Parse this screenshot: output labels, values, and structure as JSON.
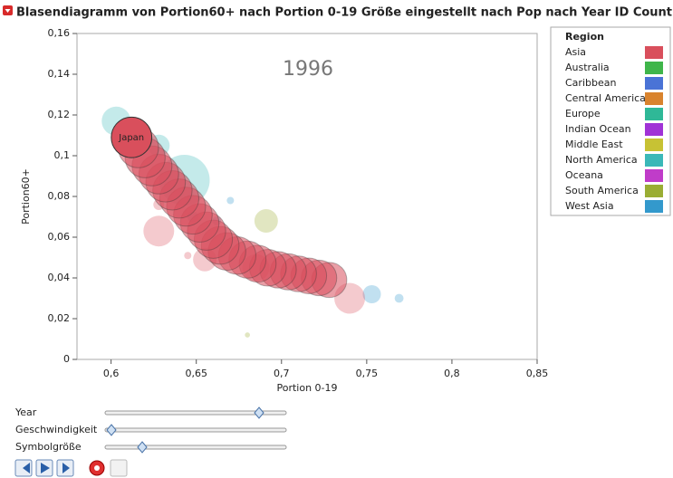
{
  "window_title": "Blasendiagramm von Portion60+ nach Portion 0-19 Größe eingestellt nach Pop nach Year ID Country",
  "chart_data": {
    "type": "bubble",
    "annotation": "1996",
    "xlabel": "Portion 0-19",
    "ylabel": "Portion60+",
    "xlim": [
      0.58,
      0.85
    ],
    "xticks": [
      {
        "value": 0.6,
        "label": "0,6"
      },
      {
        "value": 0.65,
        "label": "0,65"
      },
      {
        "value": 0.7,
        "label": "0,7"
      },
      {
        "value": 0.75,
        "label": "0,75"
      },
      {
        "value": 0.8,
        "label": "0,8"
      },
      {
        "value": 0.85,
        "label": "0,85"
      }
    ],
    "ylim": [
      0,
      0.16
    ],
    "yticks": [
      0,
      {
        "value": 0.02,
        "label": "0,02"
      },
      {
        "value": 0.04,
        "label": "0,04"
      },
      {
        "value": 0.06,
        "label": "0,06"
      },
      {
        "value": 0.08,
        "label": "0,08"
      },
      {
        "value": 0.1,
        "label": "0,1"
      },
      {
        "value": 0.12,
        "label": "0,12"
      },
      {
        "value": 0.14,
        "label": "0,14"
      },
      {
        "value": 0.16,
        "label": "0,16"
      }
    ],
    "legend": {
      "title": "Region",
      "items": [
        {
          "name": "Asia",
          "color": "#d94f5c"
        },
        {
          "name": "Australia",
          "color": "#3fb54a"
        },
        {
          "name": "Caribbean",
          "color": "#4a73d6"
        },
        {
          "name": "Central America",
          "color": "#d9832d"
        },
        {
          "name": "Europe",
          "color": "#2fb897"
        },
        {
          "name": "Indian Ocean",
          "color": "#a033d6"
        },
        {
          "name": "Middle East",
          "color": "#c7c234"
        },
        {
          "name": "North America",
          "color": "#3ab8b8"
        },
        {
          "name": "Oceana",
          "color": "#c03cc9"
        },
        {
          "name": "South America",
          "color": "#9aad33"
        },
        {
          "name": "West Asia",
          "color": "#3399cc"
        }
      ]
    },
    "background": [
      {
        "color": "#3ab8b8",
        "x": [
          0.603,
          0.643,
          0.628
        ],
        "y": [
          0.117,
          0.088,
          0.105
        ],
        "size": [
          64,
          196,
          36
        ]
      },
      {
        "color": "#3399cc",
        "x": [
          0.753,
          0.769,
          0.648,
          0.662,
          0.67
        ],
        "y": [
          0.032,
          0.03,
          0.07,
          0.068,
          0.078
        ],
        "size": [
          25,
          6,
          9,
          6,
          4
        ]
      },
      {
        "color": "#d94f5c",
        "x": [
          0.628,
          0.74,
          0.685,
          0.655,
          0.628,
          0.645
        ],
        "y": [
          0.063,
          0.03,
          0.045,
          0.049,
          0.076,
          0.051
        ],
        "size": [
          72,
          72,
          56,
          42,
          9,
          4
        ]
      },
      {
        "color": "#9aad33",
        "x": [
          0.691,
          0.68
        ],
        "y": [
          0.068,
          0.012
        ],
        "size": [
          42,
          2
        ]
      }
    ],
    "series": [
      {
        "name": "Japan",
        "color": "#d94f5c",
        "x": [
          0.728,
          0.722,
          0.716,
          0.71,
          0.704,
          0.698,
          0.692,
          0.686,
          0.68,
          0.674,
          0.668,
          0.664,
          0.66,
          0.656,
          0.652,
          0.648,
          0.644,
          0.64,
          0.636,
          0.632,
          0.628,
          0.624,
          0.62,
          0.616,
          0.612
        ],
        "y": [
          0.039,
          0.04,
          0.041,
          0.042,
          0.043,
          0.044,
          0.045,
          0.047,
          0.049,
          0.051,
          0.053,
          0.056,
          0.059,
          0.063,
          0.067,
          0.071,
          0.075,
          0.079,
          0.083,
          0.087,
          0.091,
          0.095,
          0.099,
          0.104,
          0.109
        ],
        "size": [
          94,
          96,
          97,
          98,
          100,
          101,
          103,
          104,
          105,
          107,
          108,
          109,
          111,
          112,
          113,
          114,
          116,
          117,
          118,
          119,
          120,
          121,
          122,
          124,
          125
        ]
      }
    ]
  },
  "controls": {
    "sliders": [
      "Year",
      "Geschwindigkeit",
      "Symbolgröße"
    ]
  }
}
